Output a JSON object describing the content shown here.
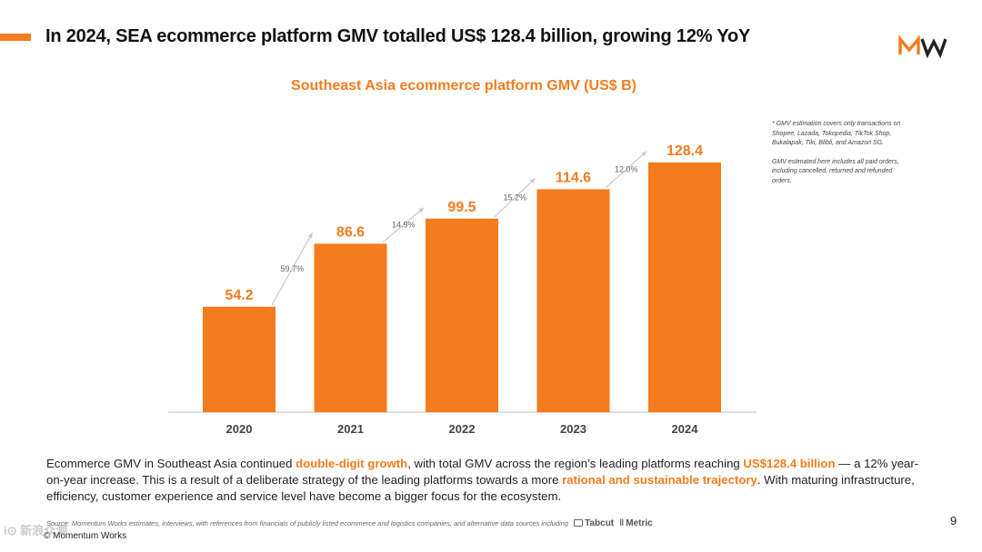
{
  "header": {
    "title": "In 2024, SEA ecommerce platform GMV totalled US$ 128.4 billion, growing 12% YoY",
    "accent_color": "#f47c1e",
    "logo_icon": "mw-logo-icon"
  },
  "chart_data": {
    "type": "bar",
    "title": "Southeast Asia ecommerce platform GMV (US$ B)",
    "categories": [
      "2020",
      "2021",
      "2022",
      "2023",
      "2024"
    ],
    "values": [
      54.2,
      86.6,
      99.5,
      114.6,
      128.4
    ],
    "value_labels": [
      "54.2",
      "86.6",
      "99.5",
      "114.6",
      "128.4"
    ],
    "growth_labels": [
      "59.7%",
      "14.9%",
      "15.2%",
      "12.0%"
    ],
    "ylim": [
      0,
      140
    ],
    "grid": false,
    "bar_color": "#f47c1e",
    "xlabel": "",
    "ylabel": ""
  },
  "footnote": {
    "line1": "* GMV estimation covers only transactions on Shopee, Lazada, Tokopedia, TikTok Shop, Bukalapak, Tiki, Blibli, and Amazon SG.",
    "line2": "GMV estimated here includes all paid orders, including cancelled, returned and refunded orders."
  },
  "body": {
    "part1": "Ecommerce GMV in Southeast Asia continued ",
    "hl1": "double-digit growth",
    "part2": ", with total GMV across the region’s leading platforms reaching ",
    "hl2": "US$128.4 billion",
    "part3": " — a 12% year-on-year increase. This is a result of a deliberate strategy of the leading platforms towards a more ",
    "hl3": "rational and sustainable trajectory",
    "part4": ". With maturing infrastructure, efficiency, customer experience and service level have become a bigger focus for the ecosystem."
  },
  "footer": {
    "source": "Source: Momentum Works estimates, interviews, with references from financials of publicly listed ecommerce and logistics companies,  and alternative data sources including",
    "brand1": "Tabcut",
    "brand2": "Metric",
    "copyright": "© Momentum Works",
    "page_number": "9",
    "watermark": "i⊙ 新浪众测"
  }
}
